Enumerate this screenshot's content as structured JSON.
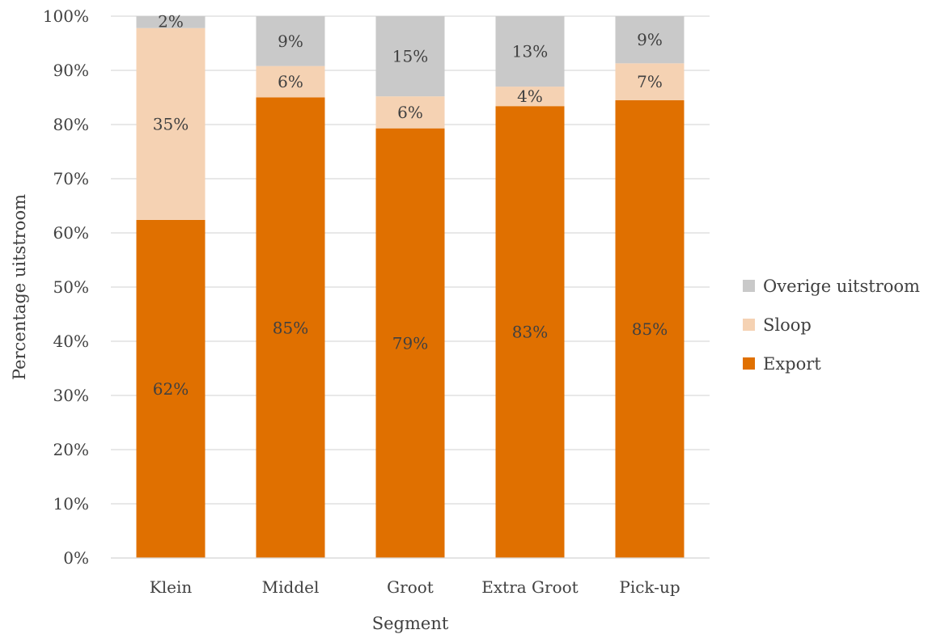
{
  "chart_data": {
    "type": "bar",
    "stacked": true,
    "percent": true,
    "xlabel": "Segment",
    "ylabel": "Percentage uitstroom",
    "ylim": [
      0,
      100
    ],
    "yticks": [
      0,
      10,
      20,
      30,
      40,
      50,
      60,
      70,
      80,
      90,
      100
    ],
    "ytick_labels": [
      "0%",
      "10%",
      "20%",
      "30%",
      "40%",
      "50%",
      "60%",
      "70%",
      "80%",
      "90%",
      "100%"
    ],
    "grid": true,
    "legend_position": "right",
    "categories": [
      "Klein",
      "Middel",
      "Groot",
      "Extra Groot",
      "Pick-up"
    ],
    "series": [
      {
        "name": "Export",
        "color": "#E07000",
        "values": [
          62.4,
          85.0,
          79.3,
          83.4,
          84.5
        ],
        "labels": [
          "62%",
          "85%",
          "79%",
          "83%",
          "85%"
        ]
      },
      {
        "name": "Sloop",
        "color": "#F5D2B3",
        "values": [
          35.4,
          5.8,
          5.9,
          3.6,
          6.8
        ],
        "labels": [
          "35%",
          "6%",
          "6%",
          "4%",
          "7%"
        ]
      },
      {
        "name": "Overige uitstroom",
        "color": "#C9C9C9",
        "values": [
          2.2,
          9.2,
          14.8,
          13.0,
          8.7
        ],
        "labels": [
          "2%",
          "9%",
          "15%",
          "13%",
          "9%"
        ]
      }
    ]
  }
}
